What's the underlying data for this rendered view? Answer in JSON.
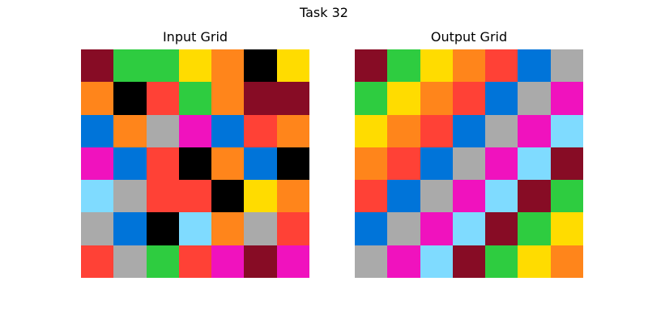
{
  "figure": {
    "title": "Task 32"
  },
  "palette": {
    "0": "#000000",
    "1": "#0074D9",
    "2": "#FF4136",
    "3": "#2ECC40",
    "4": "#FFDC00",
    "5": "#AAAAAA",
    "6": "#F012BE",
    "7": "#FF851B",
    "8": "#7FDBFF",
    "9": "#870C25"
  },
  "input": {
    "title": "Input Grid",
    "grid": [
      [
        9,
        3,
        3,
        4,
        7,
        0,
        4
      ],
      [
        7,
        0,
        2,
        3,
        7,
        9,
        9
      ],
      [
        1,
        7,
        5,
        6,
        1,
        2,
        7
      ],
      [
        6,
        1,
        2,
        0,
        7,
        1,
        0
      ],
      [
        8,
        5,
        2,
        2,
        0,
        4,
        7
      ],
      [
        5,
        1,
        0,
        8,
        7,
        5,
        2
      ],
      [
        2,
        5,
        3,
        2,
        6,
        9,
        6
      ]
    ]
  },
  "output": {
    "title": "Output Grid",
    "grid": [
      [
        9,
        3,
        4,
        7,
        2,
        1,
        5
      ],
      [
        3,
        4,
        7,
        2,
        1,
        5,
        6
      ],
      [
        4,
        7,
        2,
        1,
        5,
        6,
        8
      ],
      [
        7,
        2,
        1,
        5,
        6,
        8,
        9
      ],
      [
        2,
        1,
        5,
        6,
        8,
        9,
        3
      ],
      [
        1,
        5,
        6,
        8,
        9,
        3,
        4
      ],
      [
        5,
        6,
        8,
        9,
        3,
        4,
        7
      ]
    ]
  }
}
